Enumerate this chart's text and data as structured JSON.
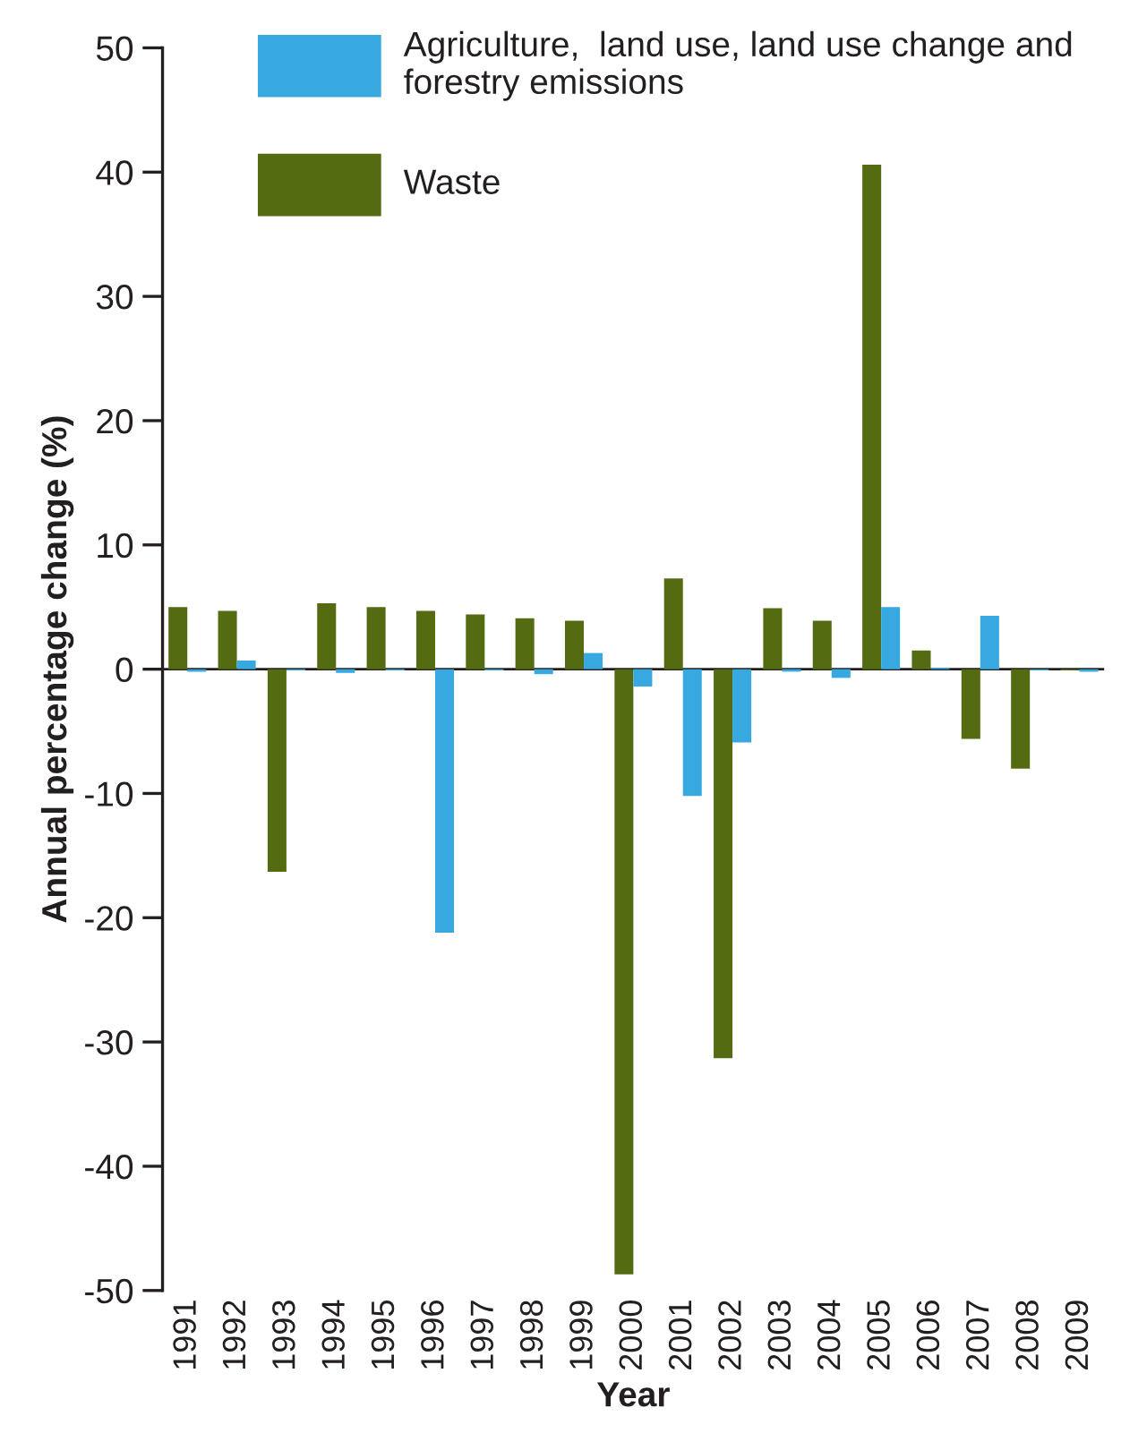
{
  "chart_data": {
    "type": "bar",
    "xlabel": "Year",
    "ylabel": "Annual percentage change (%)",
    "categories": [
      "1991",
      "1992",
      "1993",
      "1994",
      "1995",
      "1996",
      "1997",
      "1998",
      "1999",
      "2000",
      "2001",
      "2002",
      "2003",
      "2004",
      "2005",
      "2006",
      "2007",
      "2008",
      "2009"
    ],
    "series": [
      {
        "name": "Waste",
        "color": "#546b12",
        "values": [
          5.0,
          4.7,
          -16.3,
          5.3,
          5.0,
          4.7,
          4.4,
          4.1,
          3.9,
          -48.7,
          7.3,
          -31.3,
          4.9,
          3.9,
          40.6,
          1.5,
          -5.6,
          -8.0,
          -0.1
        ]
      },
      {
        "name": "Agriculture,  land use, land use change and forestry emissions",
        "color": "#38a9e0",
        "values": [
          -0.2,
          0.7,
          -0.1,
          -0.3,
          -0.1,
          -21.2,
          -0.1,
          -0.4,
          1.3,
          -1.4,
          -10.2,
          -5.9,
          -0.2,
          -0.7,
          5.0,
          0.1,
          4.3,
          -0.1,
          -0.2
        ]
      }
    ],
    "ylim": [
      -50,
      50
    ],
    "yticks": [
      {
        "value": -50,
        "label": "-50"
      },
      {
        "value": -40,
        "label": "-40"
      },
      {
        "value": -30,
        "label": "-30"
      },
      {
        "value": -20,
        "label": "-20"
      },
      {
        "value": -10,
        "label": "-10"
      },
      0,
      10,
      20,
      30,
      40,
      50
    ],
    "legend": "top"
  }
}
